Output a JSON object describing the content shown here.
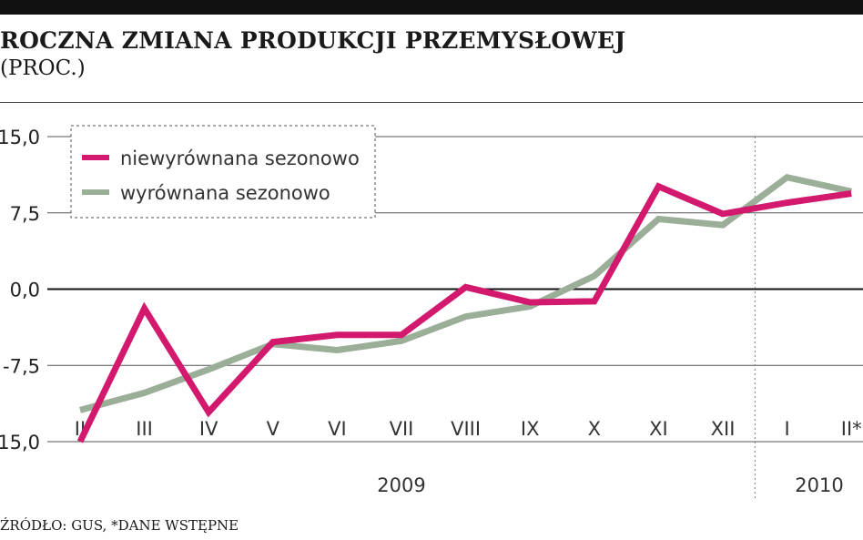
{
  "header": {
    "title": "ROCZNA ZMIANA PRODUKCJI PRZEMYSŁOWEJ",
    "subtitle": "(PROC.)"
  },
  "footer": {
    "source": "ŹRÓDŁO: GUS, *DANE WSTĘPNE"
  },
  "colors": {
    "series_unadjusted": "#d3196e",
    "series_adjusted": "#9aae98",
    "grid": "#555555",
    "zero_line": "#111111"
  },
  "chart_data": {
    "type": "line",
    "title": "ROCZNA ZMIANA PRODUKCJI PRZEMYSŁOWEJ",
    "subtitle": "(PROC.)",
    "xlabel": "",
    "ylabel": "",
    "ylim": [
      -15,
      15
    ],
    "yticks": [
      "15,0",
      "7,5",
      "0,0",
      "-7,5",
      "-15,0"
    ],
    "ytick_values": [
      15,
      7.5,
      0,
      -7.5,
      -15
    ],
    "categories": [
      "II",
      "III",
      "IV",
      "V",
      "VI",
      "VII",
      "VIII",
      "IX",
      "X",
      "XI",
      "XII",
      "I",
      "II*"
    ],
    "year_labels": [
      {
        "label": "2009",
        "from": "II",
        "to": "XII"
      },
      {
        "label": "2010",
        "from": "I",
        "to": "II*"
      }
    ],
    "grid": true,
    "legend_position": "top-left",
    "series": [
      {
        "name": "niewyrównana sezonowo",
        "color": "#d3196e",
        "values": [
          -15.0,
          -1.9,
          -12.1,
          -5.2,
          -4.5,
          -4.5,
          0.2,
          -1.3,
          -1.2,
          10.1,
          7.4,
          8.5,
          9.4
        ]
      },
      {
        "name": "wyrównana sezonowo",
        "color": "#9aae98",
        "values": [
          -11.9,
          -10.2,
          -7.9,
          -5.4,
          -6.0,
          -5.1,
          -2.7,
          -1.7,
          1.3,
          6.9,
          6.3,
          11.0,
          9.6
        ]
      }
    ]
  }
}
